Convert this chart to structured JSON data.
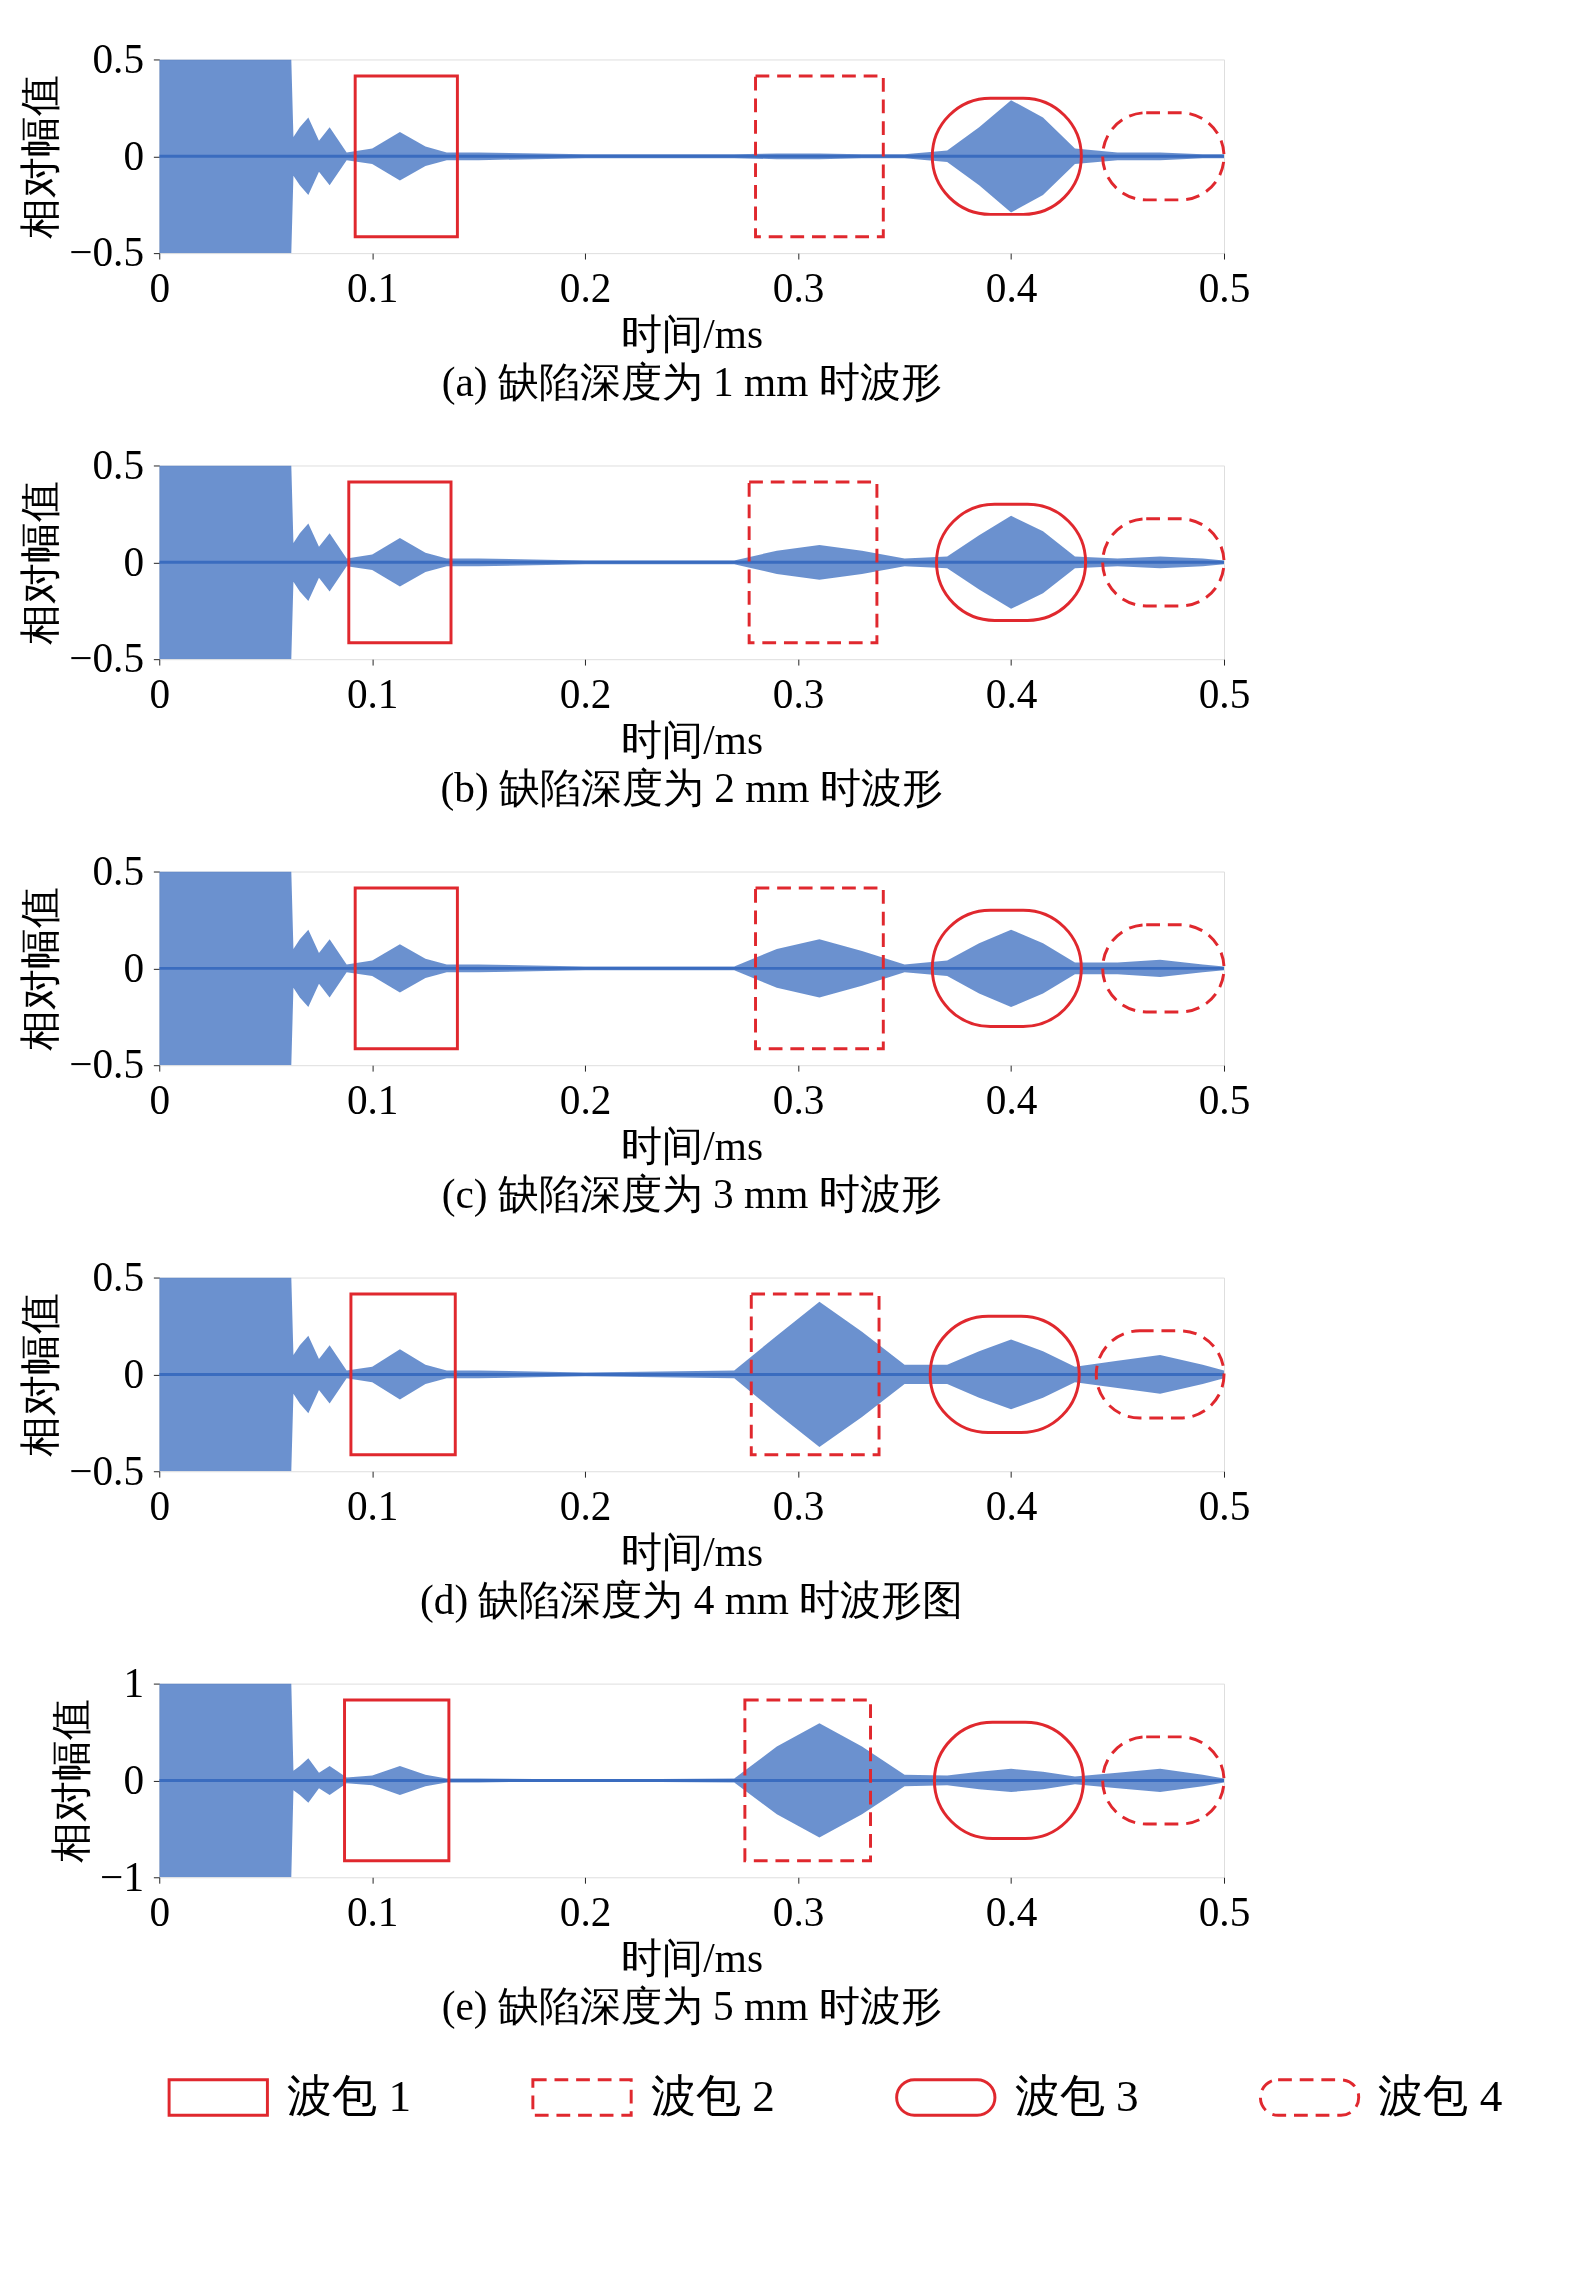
{
  "chart_data": [
    {
      "type": "line",
      "title": "(a) 缺陷深度为 1 mm 时波形",
      "xlabel": "时间/ms",
      "ylabel": "相对幅值",
      "xlim": [
        0,
        0.5
      ],
      "xticks": [
        0,
        0.1,
        0.2,
        0.3,
        0.4,
        0.5
      ],
      "ylim": [
        -0.5,
        0.5
      ],
      "yticks": [
        -0.5,
        0,
        0.5
      ],
      "x": [
        0,
        0.062,
        0.063,
        0.066,
        0.07,
        0.075,
        0.08,
        0.088,
        0.1,
        0.113,
        0.125,
        0.135,
        0.15,
        0.2,
        0.27,
        0.29,
        0.31,
        0.33,
        0.35,
        0.37,
        0.385,
        0.4,
        0.415,
        0.43,
        0.45,
        0.47,
        0.49,
        0.5
      ],
      "series": [
        {
          "color": "#3a6cbf",
          "values": [
            0,
            0,
            0,
            0,
            0,
            0,
            0,
            0,
            0,
            0,
            0,
            0,
            0,
            0,
            0,
            0,
            0,
            0,
            0,
            0,
            0,
            0,
            0,
            0,
            0,
            0,
            0,
            0
          ],
          "upper": [
            0.5,
            0.5,
            0.1,
            0.15,
            0.2,
            0.08,
            0.15,
            0.02,
            0.04,
            0.125,
            0.05,
            0.02,
            0.02,
            0.01,
            0.01,
            0.015,
            0.015,
            0.01,
            0.01,
            0.03,
            0.15,
            0.29,
            0.2,
            0.04,
            0.02,
            0.02,
            0.01,
            0.01
          ],
          "lower": [
            -0.5,
            -0.5,
            -0.1,
            -0.15,
            -0.2,
            -0.08,
            -0.15,
            -0.02,
            -0.04,
            -0.125,
            -0.05,
            -0.02,
            -0.02,
            -0.01,
            -0.01,
            -0.015,
            -0.015,
            -0.01,
            -0.01,
            -0.03,
            -0.15,
            -0.29,
            -0.2,
            -0.04,
            -0.02,
            -0.02,
            -0.01,
            -0.01
          ]
        }
      ]
    },
    {
      "type": "line",
      "title": "(b) 缺陷深度为 2 mm 时波形",
      "xlabel": "时间/ms",
      "ylabel": "相对幅值",
      "xlim": [
        0,
        0.5
      ],
      "xticks": [
        0,
        0.1,
        0.2,
        0.3,
        0.4,
        0.5
      ],
      "ylim": [
        -0.5,
        0.5
      ],
      "yticks": [
        -0.5,
        0,
        0.5
      ],
      "x": [
        0,
        0.062,
        0.063,
        0.066,
        0.07,
        0.075,
        0.08,
        0.088,
        0.1,
        0.113,
        0.125,
        0.135,
        0.15,
        0.2,
        0.27,
        0.29,
        0.31,
        0.33,
        0.35,
        0.37,
        0.385,
        0.4,
        0.415,
        0.43,
        0.45,
        0.47,
        0.49,
        0.5
      ],
      "series": [
        {
          "color": "#3a6cbf",
          "values": [
            0,
            0,
            0,
            0,
            0,
            0,
            0,
            0,
            0,
            0,
            0,
            0,
            0,
            0,
            0,
            0,
            0,
            0,
            0,
            0,
            0,
            0,
            0,
            0,
            0,
            0,
            0,
            0
          ],
          "upper": [
            0.5,
            0.5,
            0.1,
            0.15,
            0.2,
            0.08,
            0.15,
            0.02,
            0.04,
            0.125,
            0.05,
            0.02,
            0.02,
            0.01,
            0.01,
            0.06,
            0.09,
            0.06,
            0.02,
            0.03,
            0.14,
            0.24,
            0.16,
            0.03,
            0.02,
            0.03,
            0.02,
            0.01
          ],
          "lower": [
            -0.5,
            -0.5,
            -0.1,
            -0.15,
            -0.2,
            -0.08,
            -0.15,
            -0.02,
            -0.04,
            -0.125,
            -0.05,
            -0.02,
            -0.02,
            -0.01,
            -0.01,
            -0.06,
            -0.09,
            -0.06,
            -0.02,
            -0.03,
            -0.14,
            -0.24,
            -0.16,
            -0.03,
            -0.02,
            -0.03,
            -0.02,
            -0.01
          ]
        }
      ]
    },
    {
      "type": "line",
      "title": "(c) 缺陷深度为 3 mm 时波形",
      "xlabel": "时间/ms",
      "ylabel": "相对幅值",
      "xlim": [
        0,
        0.5
      ],
      "xticks": [
        0,
        0.1,
        0.2,
        0.3,
        0.4,
        0.5
      ],
      "ylim": [
        -0.5,
        0.5
      ],
      "yticks": [
        -0.5,
        0,
        0.5
      ],
      "x": [
        0,
        0.062,
        0.063,
        0.066,
        0.07,
        0.075,
        0.08,
        0.088,
        0.1,
        0.113,
        0.125,
        0.135,
        0.15,
        0.2,
        0.27,
        0.29,
        0.31,
        0.33,
        0.35,
        0.37,
        0.385,
        0.4,
        0.415,
        0.43,
        0.45,
        0.47,
        0.49,
        0.5
      ],
      "series": [
        {
          "color": "#3a6cbf",
          "values": [
            0,
            0,
            0,
            0,
            0,
            0,
            0,
            0,
            0,
            0,
            0,
            0,
            0,
            0,
            0,
            0,
            0,
            0,
            0,
            0,
            0,
            0,
            0,
            0,
            0,
            0,
            0,
            0
          ],
          "upper": [
            0.5,
            0.5,
            0.1,
            0.15,
            0.2,
            0.08,
            0.15,
            0.02,
            0.04,
            0.125,
            0.05,
            0.02,
            0.02,
            0.01,
            0.01,
            0.1,
            0.15,
            0.09,
            0.02,
            0.04,
            0.13,
            0.2,
            0.13,
            0.03,
            0.03,
            0.045,
            0.02,
            0.01
          ],
          "lower": [
            -0.5,
            -0.5,
            -0.1,
            -0.15,
            -0.2,
            -0.08,
            -0.15,
            -0.02,
            -0.04,
            -0.125,
            -0.05,
            -0.02,
            -0.02,
            -0.01,
            -0.01,
            -0.1,
            -0.15,
            -0.09,
            -0.02,
            -0.04,
            -0.13,
            -0.2,
            -0.13,
            -0.03,
            -0.03,
            -0.045,
            -0.02,
            -0.01
          ]
        }
      ]
    },
    {
      "type": "line",
      "title": "(d) 缺陷深度为 4 mm 时波形图",
      "xlabel": "时间/ms",
      "ylabel": "相对幅值",
      "xlim": [
        0,
        0.5
      ],
      "xticks": [
        0,
        0.1,
        0.2,
        0.3,
        0.4,
        0.5
      ],
      "ylim": [
        -0.5,
        0.5
      ],
      "yticks": [
        -0.5,
        0,
        0.5
      ],
      "x": [
        0,
        0.062,
        0.063,
        0.066,
        0.07,
        0.075,
        0.08,
        0.088,
        0.1,
        0.113,
        0.125,
        0.135,
        0.15,
        0.2,
        0.27,
        0.29,
        0.31,
        0.33,
        0.35,
        0.37,
        0.385,
        0.4,
        0.415,
        0.43,
        0.45,
        0.47,
        0.49,
        0.5
      ],
      "series": [
        {
          "color": "#3a6cbf",
          "values": [
            0,
            0,
            0,
            0,
            0,
            0,
            0,
            0,
            0,
            0,
            0,
            0,
            0,
            0,
            0,
            0,
            0,
            0,
            0,
            0,
            0,
            0,
            0,
            0,
            0,
            0,
            0,
            0
          ],
          "upper": [
            0.5,
            0.5,
            0.1,
            0.15,
            0.2,
            0.08,
            0.15,
            0.02,
            0.04,
            0.13,
            0.05,
            0.02,
            0.02,
            0.01,
            0.02,
            0.2,
            0.375,
            0.22,
            0.05,
            0.05,
            0.12,
            0.18,
            0.12,
            0.04,
            0.07,
            0.1,
            0.05,
            0.02
          ],
          "lower": [
            -0.5,
            -0.5,
            -0.1,
            -0.15,
            -0.2,
            -0.08,
            -0.15,
            -0.02,
            -0.04,
            -0.13,
            -0.05,
            -0.02,
            -0.02,
            -0.01,
            -0.02,
            -0.2,
            -0.375,
            -0.22,
            -0.05,
            -0.05,
            -0.12,
            -0.18,
            -0.12,
            -0.04,
            -0.07,
            -0.1,
            -0.05,
            -0.02
          ]
        }
      ]
    },
    {
      "type": "line",
      "title": "(e) 缺陷深度为 5 mm 时波形",
      "xlabel": "时间/ms",
      "ylabel": "相对幅值",
      "xlim": [
        0,
        0.5
      ],
      "xticks": [
        0,
        0.1,
        0.2,
        0.3,
        0.4,
        0.5
      ],
      "ylim": [
        -1,
        1
      ],
      "yticks": [
        -1,
        0,
        1
      ],
      "annotations": [
        "波包 1",
        "波包 2",
        "波包 3",
        "波包 4"
      ],
      "x": [
        0,
        0.062,
        0.063,
        0.066,
        0.07,
        0.075,
        0.08,
        0.088,
        0.1,
        0.113,
        0.125,
        0.135,
        0.15,
        0.2,
        0.27,
        0.29,
        0.31,
        0.33,
        0.35,
        0.37,
        0.385,
        0.4,
        0.415,
        0.43,
        0.45,
        0.47,
        0.49,
        0.5
      ],
      "series": [
        {
          "color": "#3a6cbf",
          "values": [
            0,
            0,
            0,
            0,
            0,
            0,
            0,
            0,
            0,
            0,
            0,
            0,
            0,
            0,
            0,
            0,
            0,
            0,
            0,
            0,
            0,
            0,
            0,
            0,
            0,
            0,
            0,
            0
          ],
          "upper": [
            1,
            1,
            0.1,
            0.15,
            0.23,
            0.08,
            0.15,
            0.03,
            0.05,
            0.15,
            0.06,
            0.02,
            0.02,
            0.01,
            0.02,
            0.35,
            0.59,
            0.35,
            0.06,
            0.05,
            0.09,
            0.12,
            0.09,
            0.04,
            0.08,
            0.12,
            0.06,
            0.02
          ],
          "lower": [
            -1,
            -1,
            -0.1,
            -0.15,
            -0.23,
            -0.08,
            -0.15,
            -0.03,
            -0.05,
            -0.15,
            -0.06,
            -0.02,
            -0.02,
            -0.01,
            -0.02,
            -0.35,
            -0.59,
            -0.35,
            -0.06,
            -0.05,
            -0.09,
            -0.12,
            -0.09,
            -0.04,
            -0.08,
            -0.12,
            -0.06,
            -0.02
          ]
        }
      ]
    }
  ]
}
